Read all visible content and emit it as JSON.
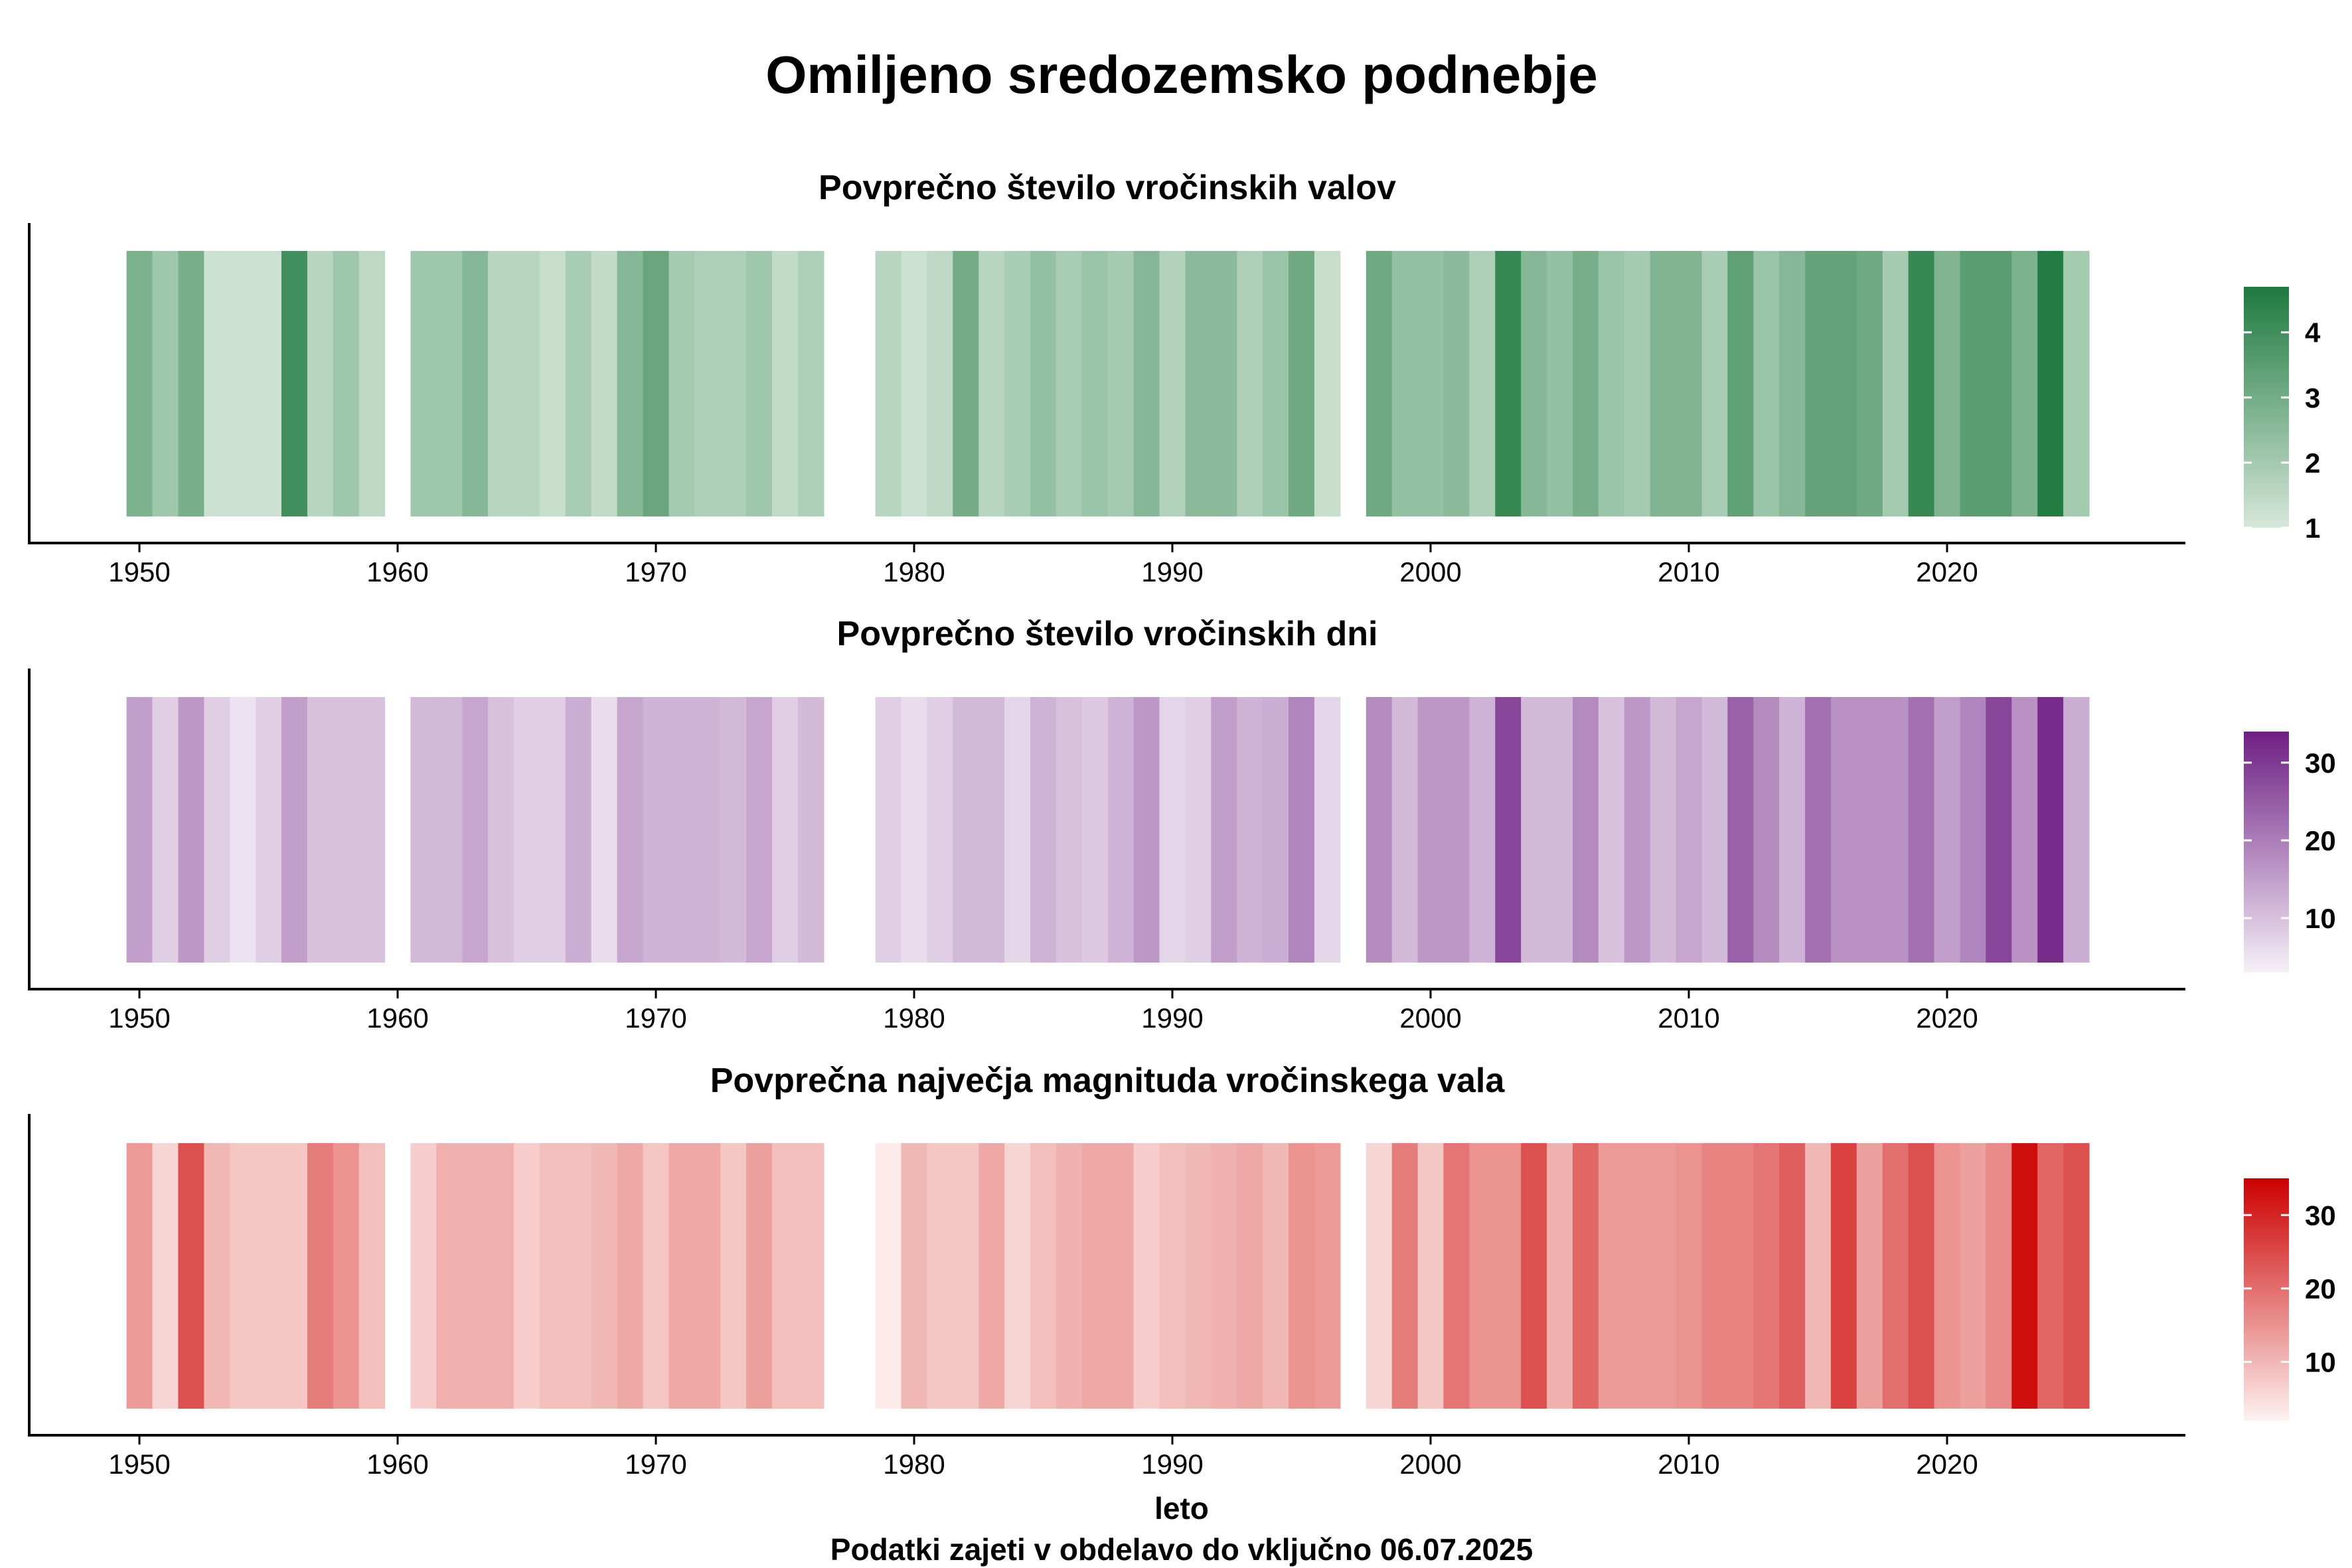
{
  "title": "Omiljeno sredozemsko podnebje",
  "xlabel": "leto",
  "caption": "Podatki zajeti v obdelavo do vključno 06.07.2025",
  "chart_data": [
    {
      "type": "heatmap",
      "title": "Povprečno število vročinskih valov",
      "xlim": [
        1945.5,
        2029.5
      ],
      "xticks": [
        1950,
        1960,
        1970,
        1980,
        1990,
        2000,
        2010,
        2020
      ],
      "colorbar": {
        "min": 1,
        "max": 4.7,
        "ticks": [
          1,
          2,
          3,
          4
        ],
        "low_color": "#d6e7da",
        "high_color": "#1e7a3e"
      },
      "years": [
        1950,
        1951,
        1952,
        1953,
        1954,
        1955,
        1956,
        1957,
        1958,
        1959,
        1961,
        1962,
        1963,
        1964,
        1965,
        1966,
        1967,
        1968,
        1969,
        1970,
        1971,
        1972,
        1973,
        1974,
        1975,
        1976,
        1979,
        1980,
        1981,
        1982,
        1983,
        1984,
        1985,
        1986,
        1987,
        1988,
        1989,
        1990,
        1991,
        1992,
        1993,
        1994,
        1995,
        1996,
        1998,
        1999,
        2000,
        2001,
        2002,
        2003,
        2004,
        2005,
        2006,
        2007,
        2008,
        2009,
        2010,
        2011,
        2012,
        2013,
        2014,
        2015,
        2016,
        2017,
        2018,
        2019,
        2020,
        2021,
        2022,
        2023,
        2024,
        2025
      ],
      "values": [
        2.8,
        2.1,
        2.9,
        1.2,
        1.2,
        1.2,
        4.0,
        1.6,
        2.1,
        1.5,
        2.1,
        2.1,
        2.6,
        1.6,
        1.6,
        1.3,
        1.9,
        1.4,
        2.6,
        3.2,
        2.0,
        1.8,
        1.8,
        2.1,
        1.4,
        1.8,
        1.6,
        1.2,
        1.5,
        3.0,
        1.6,
        1.9,
        2.3,
        1.9,
        2.2,
        2.0,
        2.6,
        1.7,
        2.5,
        2.5,
        1.8,
        2.2,
        3.1,
        1.3,
        3.1,
        2.3,
        2.3,
        2.5,
        1.8,
        4.2,
        2.6,
        2.3,
        2.9,
        2.2,
        2.0,
        2.7,
        2.7,
        1.9,
        3.4,
        2.2,
        2.6,
        3.3,
        3.3,
        3.1,
        2.0,
        4.2,
        2.7,
        3.5,
        3.5,
        2.8,
        4.6,
        2.0
      ]
    },
    {
      "type": "heatmap",
      "title": "Povprečno število vročinskih dni",
      "xlim": [
        1945.5,
        2029.5
      ],
      "xticks": [
        1950,
        1960,
        1970,
        1980,
        1990,
        2000,
        2010,
        2020
      ],
      "colorbar": {
        "min": 3,
        "max": 34,
        "ticks": [
          10,
          20,
          30
        ],
        "low_color": "#f6f0f7",
        "high_color": "#6e1f84"
      },
      "years": [
        1950,
        1951,
        1952,
        1953,
        1954,
        1955,
        1956,
        1957,
        1958,
        1959,
        1961,
        1962,
        1963,
        1964,
        1965,
        1966,
        1967,
        1968,
        1969,
        1970,
        1971,
        1972,
        1973,
        1974,
        1975,
        1976,
        1979,
        1980,
        1981,
        1982,
        1983,
        1984,
        1985,
        1986,
        1987,
        1988,
        1989,
        1990,
        1991,
        1992,
        1993,
        1994,
        1995,
        1996,
        1998,
        1999,
        2000,
        2001,
        2002,
        2003,
        2004,
        2005,
        2006,
        2007,
        2008,
        2009,
        2010,
        2011,
        2012,
        2013,
        2014,
        2015,
        2016,
        2017,
        2018,
        2019,
        2020,
        2021,
        2022,
        2023,
        2024,
        2025
      ],
      "values": [
        15,
        8,
        16,
        8,
        5,
        8,
        15,
        10,
        10,
        10,
        11,
        11,
        14,
        10,
        8,
        8,
        13,
        6,
        14,
        12,
        12,
        12,
        11,
        14,
        8,
        11,
        8,
        6,
        8,
        11,
        11,
        7,
        12,
        10,
        9,
        12,
        16,
        7,
        8,
        15,
        12,
        13,
        19,
        7,
        18,
        11,
        16,
        16,
        12,
        28,
        11,
        11,
        18,
        10,
        16,
        11,
        14,
        11,
        24,
        18,
        12,
        22,
        17,
        17,
        17,
        22,
        15,
        19,
        28,
        17,
        32,
        13
      ]
    },
    {
      "type": "heatmap",
      "title": "Povprečna največja magnituda vročinskega vala",
      "xlim": [
        1945.5,
        2029.5
      ],
      "xticks": [
        1950,
        1960,
        1970,
        1980,
        1990,
        2000,
        2010,
        2020
      ],
      "colorbar": {
        "min": 2,
        "max": 35,
        "ticks": [
          10,
          20,
          30
        ],
        "low_color": "#fdf2ef",
        "high_color": "#cc0000"
      },
      "years": [
        1950,
        1951,
        1952,
        1953,
        1954,
        1955,
        1956,
        1957,
        1958,
        1959,
        1961,
        1962,
        1963,
        1964,
        1965,
        1966,
        1967,
        1968,
        1969,
        1970,
        1971,
        1972,
        1973,
        1974,
        1975,
        1976,
        1979,
        1980,
        1981,
        1982,
        1983,
        1984,
        1985,
        1986,
        1987,
        1988,
        1989,
        1990,
        1991,
        1992,
        1993,
        1994,
        1995,
        1996,
        1998,
        1999,
        2000,
        2001,
        2002,
        2003,
        2004,
        2005,
        2006,
        2007,
        2008,
        2009,
        2010,
        2011,
        2012,
        2013,
        2014,
        2015,
        2016,
        2017,
        2018,
        2019,
        2020,
        2021,
        2022,
        2023,
        2024,
        2025
      ],
      "values": [
        14,
        6,
        24,
        10,
        8,
        8,
        8,
        18,
        15,
        9,
        7,
        11,
        11,
        11,
        7,
        9,
        9,
        10,
        12,
        8,
        12,
        12,
        8,
        13,
        9,
        9,
        3,
        10,
        8,
        8,
        12,
        6,
        9,
        11,
        12,
        12,
        7,
        9,
        10,
        11,
        12,
        10,
        15,
        14,
        6,
        18,
        8,
        19,
        15,
        15,
        24,
        11,
        21,
        14,
        14,
        14,
        15,
        17,
        17,
        19,
        22,
        10,
        26,
        13,
        20,
        24,
        15,
        13,
        16,
        33,
        21,
        24
      ]
    }
  ]
}
